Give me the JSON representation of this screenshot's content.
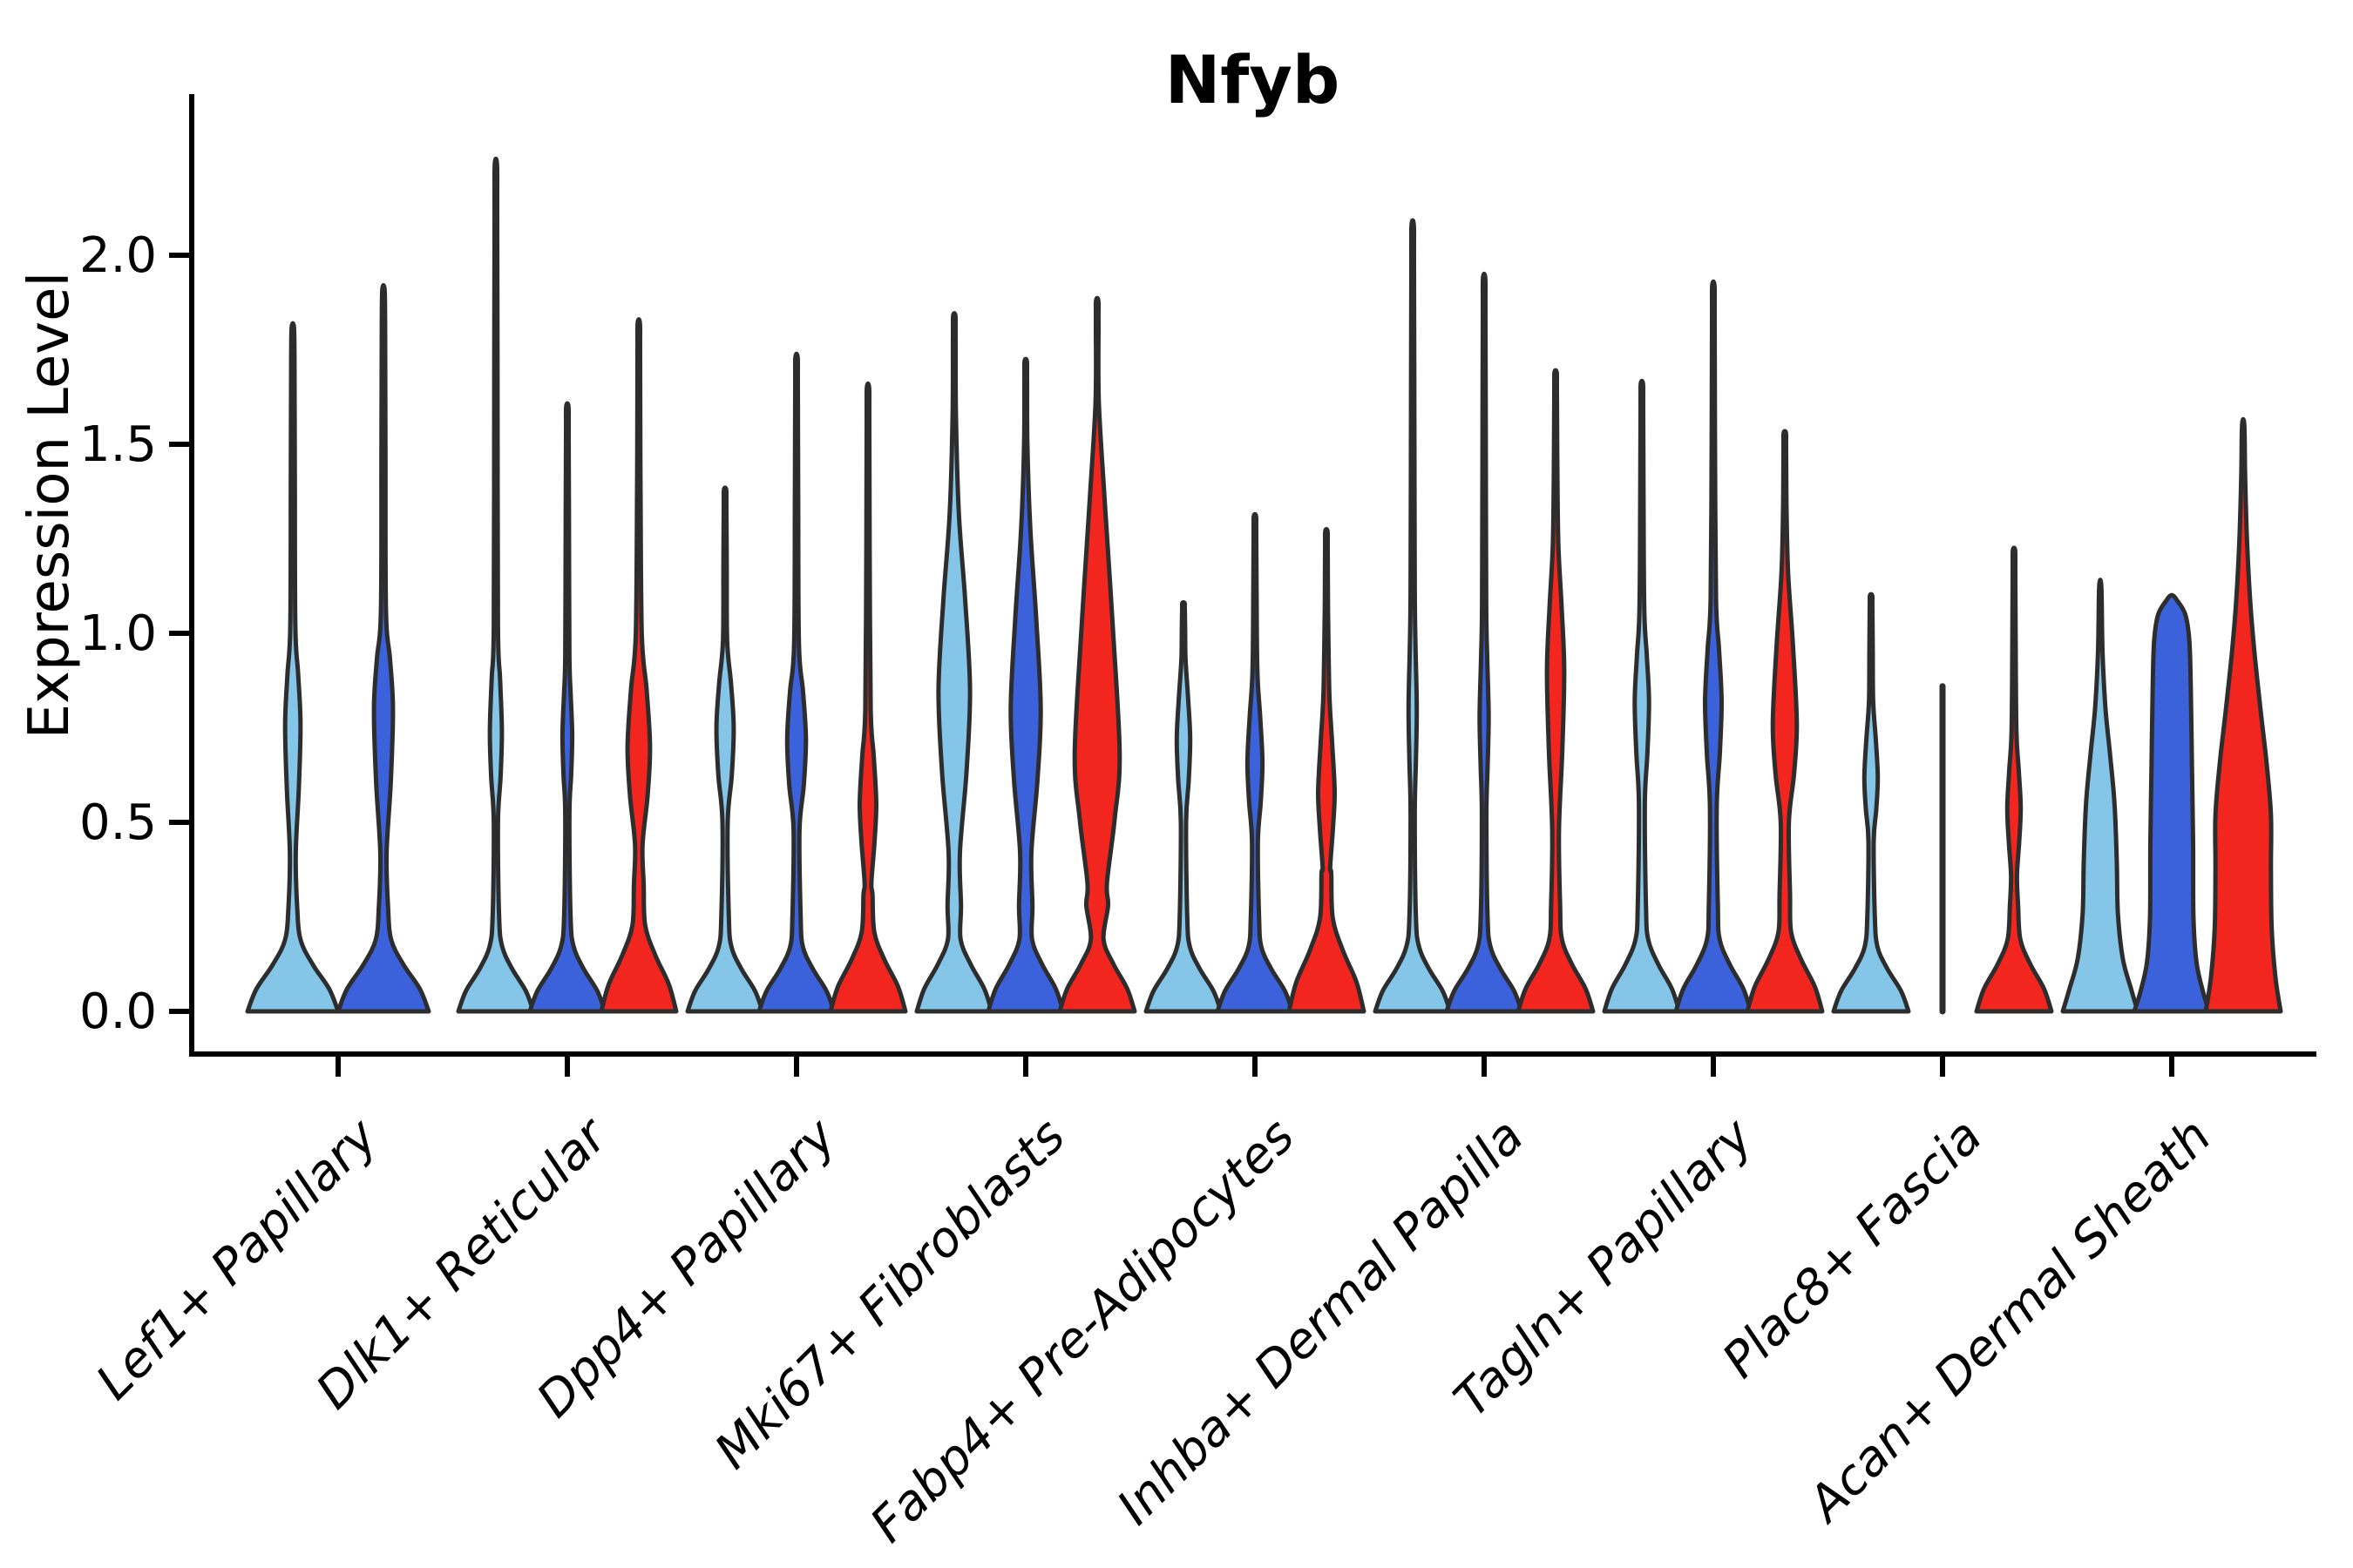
{
  "title": "Nfyb",
  "colors": {
    "light_blue": "#85C6E8",
    "dark_blue": "#3B62DB",
    "red": "#F2261E",
    "outline": "#2d2d2d",
    "axis": "#000000"
  },
  "chart_data": {
    "type": "violin",
    "title": "Nfyb",
    "ylabel": "Expression Level",
    "ylim": [
      0,
      2.42
    ],
    "grid": false,
    "legend": "none",
    "yticks": [
      0.0,
      0.5,
      1.0,
      1.5,
      2.0
    ],
    "ytick_labels": [
      "0.0",
      "0.5",
      "1.0",
      "1.5",
      "2.0"
    ],
    "palette": [
      "#85C6E8",
      "#3B62DB",
      "#F2261E"
    ],
    "categories": [
      "Lef1+ Papillary",
      "Dlk1+ Reticular",
      "Dpp4+ Papillary",
      "Mki67+ Fibroblasts",
      "Fabp4+ Pre-Adipocytes",
      "Inhba+ Dermal Papilla",
      "Tagln+ Papillary",
      "Plac8+ Fascia",
      "Acan+ Dermal Sheath"
    ],
    "groups": [
      {
        "label": "Lef1+ Papillary",
        "violins": [
          {
            "series": 0,
            "tip": 1.81,
            "base_h": 0.2,
            "neck_w": 0.065,
            "bulge": {
              "lo": 0.42,
              "c": 0.76,
              "hi": 1.02,
              "w": 0.17
            }
          },
          {
            "series": 1,
            "tip": 1.91,
            "base_h": 0.2,
            "neck_w": 0.07,
            "bulge": {
              "lo": 0.42,
              "c": 0.8,
              "hi": 1.06,
              "w": 0.21
            }
          }
        ]
      },
      {
        "label": "Dlk1+ Reticular",
        "violins": [
          {
            "series": 0,
            "tip": 2.24,
            "base_h": 0.18,
            "neck_w": 0.055,
            "bulge": {
              "lo": 0.5,
              "c": 0.74,
              "hi": 1.02,
              "w": 0.16
            }
          },
          {
            "series": 1,
            "tip": 1.6,
            "base_h": 0.18,
            "neck_w": 0.055,
            "bulge": {
              "lo": 0.52,
              "c": 0.73,
              "hi": 0.94,
              "w": 0.13
            }
          },
          {
            "series": 2,
            "tip": 1.82,
            "base_h": 0.24,
            "neck_w": 0.1,
            "bulge": {
              "lo": 0.44,
              "c": 0.7,
              "hi": 1.0,
              "w": 0.3
            }
          }
        ]
      },
      {
        "label": "Dpp4+ Papillary",
        "violins": [
          {
            "series": 0,
            "tip": 1.38,
            "base_h": 0.18,
            "neck_w": 0.07,
            "bulge": {
              "lo": 0.5,
              "c": 0.75,
              "hi": 0.98,
              "w": 0.23
            }
          },
          {
            "series": 1,
            "tip": 1.73,
            "base_h": 0.18,
            "neck_w": 0.08,
            "bulge": {
              "lo": 0.48,
              "c": 0.72,
              "hi": 0.97,
              "w": 0.25
            }
          },
          {
            "series": 2,
            "tip": 1.65,
            "base_h": 0.22,
            "neck_w": 0.09,
            "bulge": {
              "lo": 0.34,
              "c": 0.55,
              "hi": 0.8,
              "w": 0.22
            }
          }
        ]
      },
      {
        "label": "Mki67+ Fibroblasts",
        "violins": [
          {
            "series": 0,
            "tip": 1.84,
            "base_h": 0.2,
            "neck_w": 0.15,
            "bulge": {
              "lo": 0.42,
              "c": 0.85,
              "hi": 1.32,
              "w": 0.42
            }
          },
          {
            "series": 1,
            "tip": 1.72,
            "base_h": 0.2,
            "neck_w": 0.15,
            "bulge": {
              "lo": 0.42,
              "c": 0.8,
              "hi": 1.28,
              "w": 0.4
            }
          },
          {
            "series": 2,
            "tip": 1.88,
            "base_h": 0.2,
            "neck_w": 0.26,
            "bulge": {
              "lo": 0.34,
              "c": 0.68,
              "hi": 1.34,
              "w": 0.6
            }
          }
        ]
      },
      {
        "label": "Fabp4+ Pre-Adipocytes",
        "violins": [
          {
            "series": 0,
            "tip": 1.08,
            "base_h": 0.18,
            "neck_w": 0.07,
            "bulge": {
              "lo": 0.5,
              "c": 0.72,
              "hi": 0.93,
              "w": 0.18
            }
          },
          {
            "series": 1,
            "tip": 1.31,
            "base_h": 0.18,
            "neck_w": 0.08,
            "bulge": {
              "lo": 0.45,
              "c": 0.66,
              "hi": 0.9,
              "w": 0.2
            }
          },
          {
            "series": 2,
            "tip": 1.27,
            "base_h": 0.26,
            "neck_w": 0.1,
            "bulge": {
              "lo": 0.38,
              "c": 0.58,
              "hi": 0.84,
              "w": 0.22
            }
          }
        ]
      },
      {
        "label": "Inhba+ Dermal Papilla",
        "violins": [
          {
            "series": 0,
            "tip": 2.08,
            "base_h": 0.18,
            "neck_w": 0.055,
            "bulge": {
              "lo": 0.52,
              "c": 0.8,
              "hi": 1.12,
              "w": 0.11
            }
          },
          {
            "series": 1,
            "tip": 1.94,
            "base_h": 0.18,
            "neck_w": 0.06,
            "bulge": {
              "lo": 0.52,
              "c": 0.78,
              "hi": 1.08,
              "w": 0.12
            }
          },
          {
            "series": 2,
            "tip": 1.69,
            "base_h": 0.2,
            "neck_w": 0.09,
            "bulge": {
              "lo": 0.48,
              "c": 0.9,
              "hi": 1.24,
              "w": 0.23
            }
          }
        ]
      },
      {
        "label": "Tagln+ Papillary",
        "violins": [
          {
            "series": 0,
            "tip": 1.66,
            "base_h": 0.2,
            "neck_w": 0.08,
            "bulge": {
              "lo": 0.55,
              "c": 0.82,
              "hi": 1.06,
              "w": 0.19
            }
          },
          {
            "series": 1,
            "tip": 1.92,
            "base_h": 0.2,
            "neck_w": 0.09,
            "bulge": {
              "lo": 0.54,
              "c": 0.82,
              "hi": 1.09,
              "w": 0.22
            }
          },
          {
            "series": 2,
            "tip": 1.53,
            "base_h": 0.22,
            "neck_w": 0.11,
            "bulge": {
              "lo": 0.5,
              "c": 0.76,
              "hi": 1.16,
              "w": 0.32
            }
          }
        ]
      },
      {
        "label": "Plac8+ Fascia",
        "violins": [
          {
            "series": 0,
            "tip": 1.1,
            "base_h": 0.18,
            "neck_w": 0.07,
            "bulge": {
              "lo": 0.45,
              "c": 0.62,
              "hi": 0.82,
              "w": 0.18
            }
          },
          {
            "series": 1,
            "type": "line",
            "tip": 0.86
          },
          {
            "series": 2,
            "tip": 1.22,
            "base_h": 0.2,
            "neck_w": 0.08,
            "bulge": {
              "lo": 0.36,
              "c": 0.54,
              "hi": 0.74,
              "w": 0.18
            }
          }
        ]
      },
      {
        "label": "Acan+ Dermal Sheath",
        "violins": [
          {
            "series": 0,
            "tip": 1.12,
            "profile": [
              [
                0,
                1.0
              ],
              [
                0.06,
                0.82
              ],
              [
                0.14,
                0.6
              ],
              [
                0.26,
                0.47
              ],
              [
                0.4,
                0.44
              ],
              [
                0.55,
                0.38
              ],
              [
                0.68,
                0.26
              ],
              [
                0.8,
                0.14
              ],
              [
                0.95,
                0.06
              ],
              [
                1.12,
                0.015
              ]
            ]
          },
          {
            "series": 1,
            "tip": 1.1,
            "profile": [
              [
                0,
                1.0
              ],
              [
                0.05,
                0.84
              ],
              [
                0.13,
                0.66
              ],
              [
                0.25,
                0.58
              ],
              [
                0.45,
                0.57
              ],
              [
                0.65,
                0.54
              ],
              [
                0.85,
                0.51
              ],
              [
                0.98,
                0.47
              ],
              [
                1.05,
                0.36
              ],
              [
                1.09,
                0.12
              ],
              [
                1.1,
                0.0
              ]
            ]
          },
          {
            "series": 2,
            "tip": 1.55,
            "profile": [
              [
                0,
                1.0
              ],
              [
                0.09,
                0.86
              ],
              [
                0.22,
                0.76
              ],
              [
                0.38,
                0.74
              ],
              [
                0.52,
                0.74
              ],
              [
                0.66,
                0.62
              ],
              [
                0.8,
                0.46
              ],
              [
                0.94,
                0.31
              ],
              [
                1.08,
                0.19
              ],
              [
                1.25,
                0.1
              ],
              [
                1.42,
                0.05
              ],
              [
                1.55,
                0.015
              ]
            ]
          }
        ]
      }
    ]
  }
}
